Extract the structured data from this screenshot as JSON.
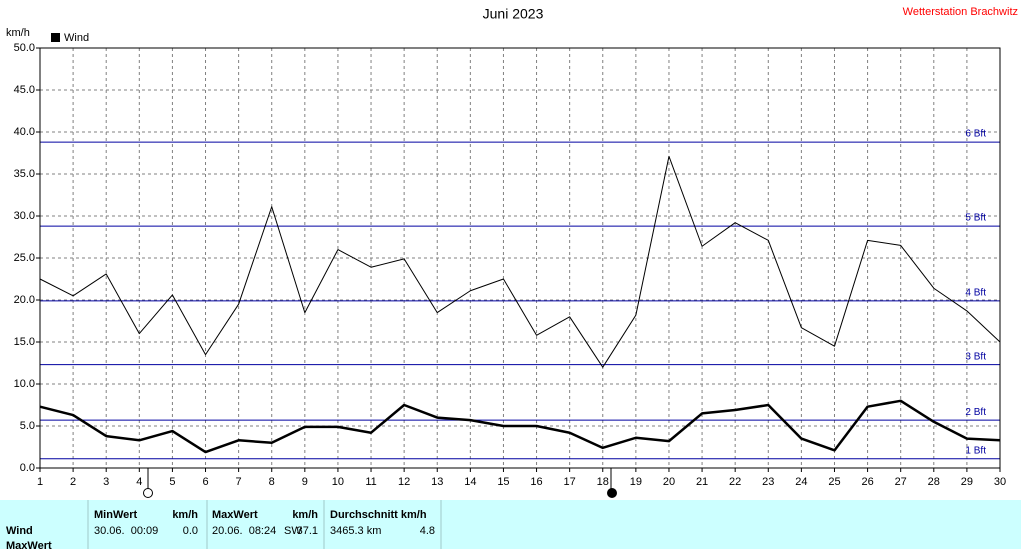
{
  "chart_data": {
    "type": "line",
    "title": "Juni 2023",
    "station": "Wetterstation Brachwitz",
    "y_unit": "km/h",
    "grid": true,
    "x": [
      1,
      2,
      3,
      4,
      5,
      6,
      7,
      8,
      9,
      10,
      11,
      12,
      13,
      14,
      15,
      16,
      17,
      18,
      19,
      20,
      21,
      22,
      23,
      24,
      25,
      26,
      27,
      28,
      29,
      30
    ],
    "xlim": [
      1,
      30
    ],
    "xticks": [
      1,
      2,
      3,
      4,
      5,
      6,
      7,
      8,
      9,
      10,
      11,
      12,
      13,
      14,
      15,
      16,
      17,
      18,
      19,
      20,
      21,
      22,
      23,
      24,
      25,
      26,
      27,
      28,
      29,
      30
    ],
    "ylim": [
      0,
      50
    ],
    "yticks": [
      {
        "value": 0,
        "label": "0.0"
      },
      {
        "value": 5,
        "label": "5.0"
      },
      {
        "value": 10,
        "label": "10.0"
      },
      {
        "value": 15,
        "label": "15.0"
      },
      {
        "value": 20,
        "label": "20.0"
      },
      {
        "value": 25,
        "label": "25.0"
      },
      {
        "value": 30,
        "label": "30.0"
      },
      {
        "value": 35,
        "label": "35.0"
      },
      {
        "value": 40,
        "label": "40.0"
      },
      {
        "value": 45,
        "label": "45.0"
      },
      {
        "value": 50,
        "label": "50.0"
      }
    ],
    "beaufort": [
      {
        "value": 1.1,
        "label": "1 Bft"
      },
      {
        "value": 5.7,
        "label": "2 Bft"
      },
      {
        "value": 12.3,
        "label": "3 Bft"
      },
      {
        "value": 19.9,
        "label": "4 Bft"
      },
      {
        "value": 28.8,
        "label": "5 Bft"
      },
      {
        "value": 38.8,
        "label": "6 Bft"
      }
    ],
    "series": [
      {
        "name": "Wind",
        "color": "#000000",
        "values": [
          7.3,
          6.3,
          3.8,
          3.3,
          4.4,
          1.9,
          3.3,
          3.0,
          4.9,
          4.9,
          4.2,
          7.5,
          6.0,
          5.7,
          5.0,
          5.0,
          4.2,
          2.4,
          3.6,
          3.2,
          6.5,
          6.9,
          7.5,
          3.5,
          2.1,
          7.3,
          8.0,
          5.5,
          3.5,
          3.3
        ]
      },
      {
        "color": "#000000",
        "values": [
          22.5,
          20.5,
          23.1,
          16.0,
          20.6,
          13.5,
          19.5,
          31.1,
          18.5,
          26.0,
          23.9,
          24.9,
          18.5,
          21.1,
          22.5,
          15.8,
          18.0,
          12.0,
          18.2,
          37.1,
          26.4,
          29.2,
          27.1,
          16.7,
          14.5,
          27.1,
          26.5,
          21.4,
          18.7,
          15.0
        ]
      }
    ]
  },
  "table": {
    "headers": [
      "MinWert",
      "km/h",
      "MaxWert",
      "km/h",
      "Durchschnitt km/h"
    ],
    "rows": [
      [
        "Wind",
        "30.06.  00:09",
        "0.0",
        "20.06.  08:24",
        "SW",
        "37.1",
        "3465.3 km",
        "4.8"
      ],
      [
        "MaxWert"
      ]
    ]
  }
}
